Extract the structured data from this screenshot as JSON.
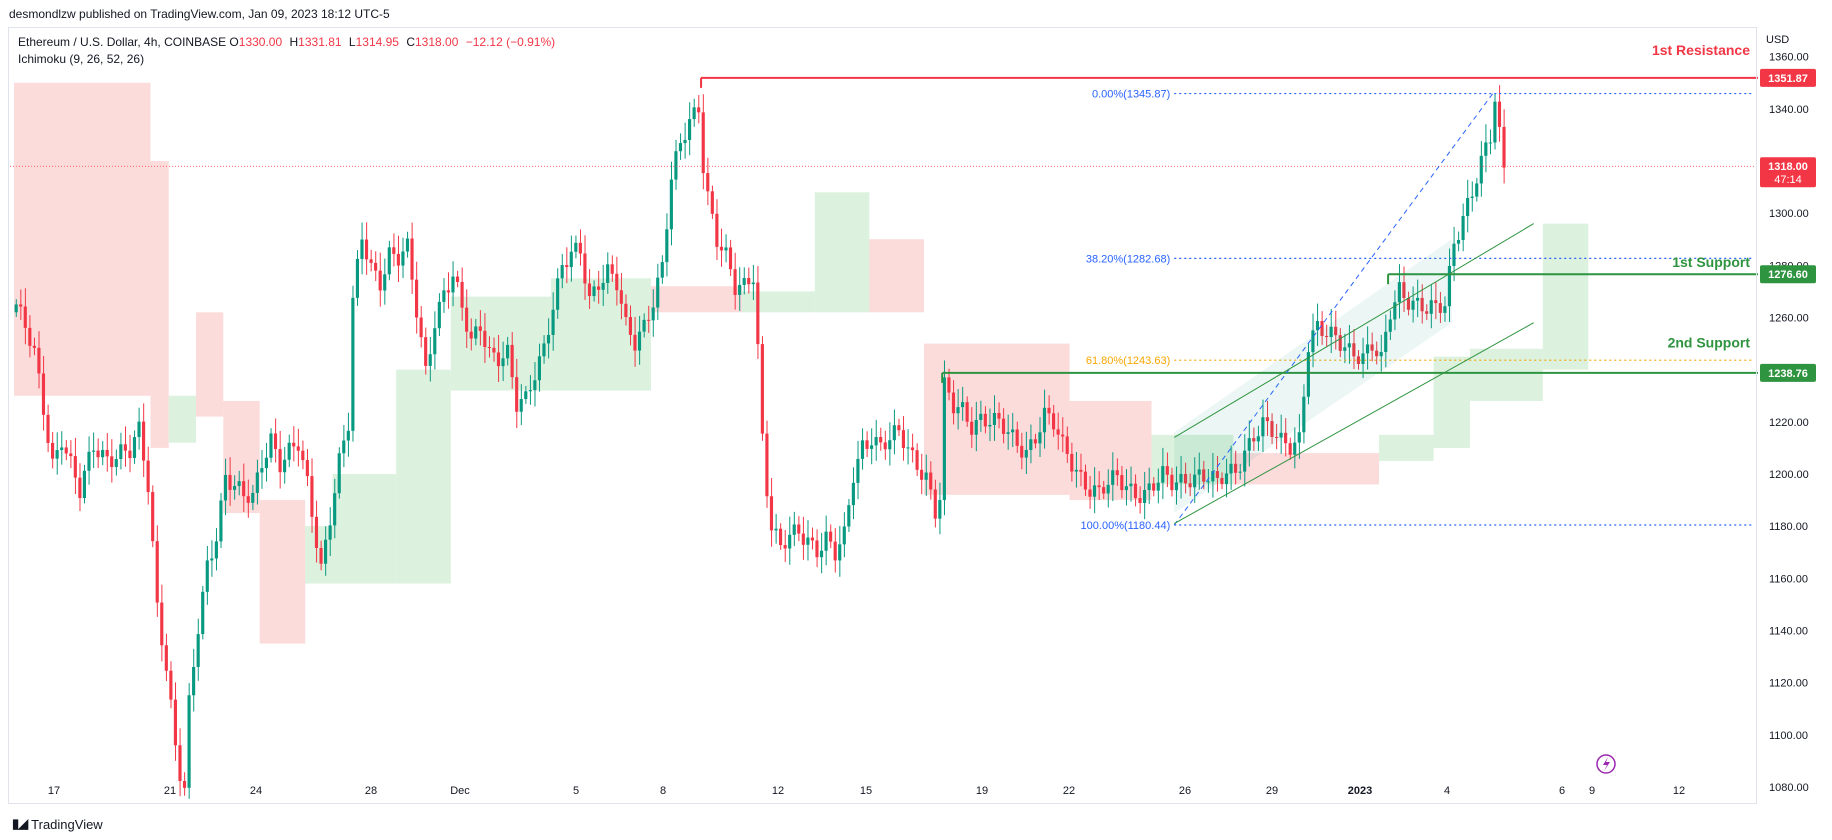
{
  "header": {
    "published": "desmondlzw published on TradingView.com, Jan 09, 2023 18:12 UTC-5"
  },
  "legend": {
    "symbol": "Ethereum / U.S. Dollar, 4h, COINBASE",
    "open_label": "O",
    "open": "1330.00",
    "high_label": "H",
    "high": "1331.81",
    "low_label": "L",
    "low": "1314.95",
    "close_label": "C",
    "close": "1318.00",
    "change": "−12.12 (−0.91%)",
    "indicator": "Ichimoku (9, 26, 52, 26)"
  },
  "axis": {
    "currency": "USD",
    "price_ticks": [
      "1360.00",
      "1340.00",
      "1320.00",
      "1300.00",
      "1280.00",
      "1260.00",
      "1240.00",
      "1220.00",
      "1200.00",
      "1180.00",
      "1160.00",
      "1140.00",
      "1120.00",
      "1100.00",
      "1080.00"
    ],
    "time_ticks": [
      "17",
      "21",
      "24",
      "28",
      "Dec",
      "5",
      "8",
      "12",
      "15",
      "19",
      "22",
      "26",
      "29",
      "2023",
      "4",
      "6",
      "9",
      "12"
    ]
  },
  "price_labels": {
    "resistance": "1351.87",
    "last": "1318.00",
    "countdown": "47:14",
    "support1": "1276.60",
    "support2": "1238.76"
  },
  "annotations": {
    "resistance_text": "1st Resistance",
    "support1_text": "1st Support",
    "support2_text": "2nd Support",
    "fib_0": "0.00%(1345.87)",
    "fib_38": "38.20%(1282.68)",
    "fib_61": "61.80%(1243.63)",
    "fib_100": "100.00%(1180.44)"
  },
  "footer": {
    "brand": "TradingView"
  },
  "colors": {
    "up": "#089981",
    "down": "#f23645",
    "resistance": "#f23645",
    "support": "#2e9440",
    "fib": "#2962ff",
    "fib61": "#f7a600",
    "cloud_green": "#d6eed8",
    "cloud_red": "#fbd5d5"
  },
  "chart_data": {
    "type": "candlestick",
    "title": "Ethereum / U.S. Dollar, 4h, COINBASE",
    "ylim": [
      1075,
      1371
    ],
    "y_ticks": [
      1360,
      1340,
      1320,
      1300,
      1280,
      1260,
      1240,
      1220,
      1200,
      1180,
      1160,
      1140,
      1120,
      1100,
      1080
    ],
    "x_ticks": [
      "17",
      "21",
      "24",
      "28",
      "Dec",
      "5",
      "8",
      "12",
      "15",
      "19",
      "22",
      "26",
      "29",
      "2023",
      "4",
      "6",
      "9",
      "12"
    ],
    "price_path": [
      [
        0,
        1265
      ],
      [
        4,
        1245
      ],
      [
        8,
        1205
      ],
      [
        10,
        1215
      ],
      [
        14,
        1192
      ],
      [
        17,
        1210
      ],
      [
        20,
        1207
      ],
      [
        23,
        1209
      ],
      [
        25,
        1208
      ],
      [
        27,
        1215
      ],
      [
        29,
        1195
      ],
      [
        31,
        1150
      ],
      [
        33,
        1128
      ],
      [
        35,
        1096
      ],
      [
        36,
        1085
      ],
      [
        37,
        1078
      ],
      [
        38,
        1110
      ],
      [
        40,
        1140
      ],
      [
        42,
        1165
      ],
      [
        44,
        1178
      ],
      [
        46,
        1200
      ],
      [
        48,
        1195
      ],
      [
        50,
        1190
      ],
      [
        52,
        1190
      ],
      [
        54,
        1205
      ],
      [
        56,
        1215
      ],
      [
        58,
        1205
      ],
      [
        60,
        1208
      ],
      [
        62,
        1210
      ],
      [
        64,
        1195
      ],
      [
        66,
        1175
      ],
      [
        67,
        1165
      ],
      [
        69,
        1185
      ],
      [
        71,
        1205
      ],
      [
        73,
        1218
      ],
      [
        74,
        1265
      ],
      [
        76,
        1290
      ],
      [
        78,
        1280
      ],
      [
        80,
        1275
      ],
      [
        82,
        1285
      ],
      [
        84,
        1282
      ],
      [
        86,
        1285
      ],
      [
        88,
        1262
      ],
      [
        90,
        1240
      ],
      [
        92,
        1260
      ],
      [
        94,
        1270
      ],
      [
        96,
        1275
      ],
      [
        98,
        1262
      ],
      [
        100,
        1250
      ],
      [
        102,
        1258
      ],
      [
        104,
        1248
      ],
      [
        106,
        1245
      ],
      [
        108,
        1245
      ],
      [
        110,
        1225
      ],
      [
        112,
        1228
      ],
      [
        114,
        1240
      ],
      [
        116,
        1250
      ],
      [
        118,
        1265
      ],
      [
        120,
        1278
      ],
      [
        122,
        1283
      ],
      [
        124,
        1285
      ],
      [
        126,
        1268
      ],
      [
        128,
        1275
      ],
      [
        130,
        1278
      ],
      [
        132,
        1272
      ],
      [
        134,
        1255
      ],
      [
        136,
        1250
      ],
      [
        138,
        1258
      ],
      [
        140,
        1268
      ],
      [
        142,
        1280
      ],
      [
        144,
        1312
      ],
      [
        146,
        1325
      ],
      [
        148,
        1335
      ],
      [
        150,
        1342
      ],
      [
        151,
        1320
      ],
      [
        152,
        1308
      ],
      [
        154,
        1290
      ],
      [
        156,
        1282
      ],
      [
        158,
        1270
      ],
      [
        160,
        1272
      ],
      [
        162,
        1278
      ],
      [
        163,
        1250
      ],
      [
        164,
        1215
      ],
      [
        165,
        1195
      ],
      [
        166,
        1180
      ],
      [
        168,
        1170
      ],
      [
        170,
        1175
      ],
      [
        172,
        1178
      ],
      [
        174,
        1176
      ],
      [
        176,
        1172
      ],
      [
        178,
        1175
      ],
      [
        180,
        1168
      ],
      [
        182,
        1175
      ],
      [
        184,
        1200
      ],
      [
        186,
        1212
      ],
      [
        188,
        1215
      ],
      [
        190,
        1210
      ],
      [
        192,
        1212
      ],
      [
        194,
        1215
      ],
      [
        196,
        1210
      ],
      [
        198,
        1205
      ],
      [
        200,
        1200
      ],
      [
        202,
        1185
      ],
      [
        203,
        1190
      ],
      [
        204,
        1232
      ],
      [
        206,
        1225
      ],
      [
        208,
        1225
      ],
      [
        210,
        1220
      ],
      [
        212,
        1222
      ],
      [
        214,
        1220
      ],
      [
        216,
        1218
      ],
      [
        218,
        1215
      ],
      [
        220,
        1212
      ],
      [
        222,
        1210
      ],
      [
        224,
        1215
      ],
      [
        226,
        1222
      ],
      [
        228,
        1218
      ],
      [
        230,
        1210
      ],
      [
        232,
        1205
      ],
      [
        234,
        1200
      ],
      [
        236,
        1195
      ],
      [
        238,
        1192
      ],
      [
        240,
        1195
      ],
      [
        242,
        1198
      ],
      [
        244,
        1196
      ],
      [
        246,
        1194
      ],
      [
        248,
        1193
      ],
      [
        250,
        1195
      ],
      [
        252,
        1198
      ],
      [
        254,
        1196
      ],
      [
        256,
        1198
      ],
      [
        258,
        1200
      ],
      [
        260,
        1200
      ],
      [
        262,
        1198
      ],
      [
        264,
        1195
      ],
      [
        266,
        1200
      ],
      [
        268,
        1202
      ],
      [
        270,
        1210
      ],
      [
        272,
        1215
      ],
      [
        274,
        1218
      ],
      [
        276,
        1215
      ],
      [
        278,
        1212
      ],
      [
        280,
        1212
      ],
      [
        282,
        1215
      ],
      [
        284,
        1250
      ],
      [
        286,
        1255
      ],
      [
        288,
        1252
      ],
      [
        290,
        1252
      ],
      [
        292,
        1250
      ],
      [
        294,
        1248
      ],
      [
        296,
        1245
      ],
      [
        298,
        1248
      ],
      [
        300,
        1242
      ],
      [
        302,
        1262
      ],
      [
        304,
        1272
      ],
      [
        306,
        1268
      ],
      [
        308,
        1265
      ],
      [
        310,
        1262
      ],
      [
        312,
        1262
      ],
      [
        314,
        1265
      ],
      [
        316,
        1290
      ],
      [
        318,
        1300
      ],
      [
        320,
        1308
      ],
      [
        322,
        1318
      ],
      [
        324,
        1328
      ],
      [
        325,
        1343
      ],
      [
        326,
        1330
      ],
      [
        327,
        1318
      ]
    ],
    "levels": {
      "first_resistance": 1351.87,
      "first_support": 1276.6,
      "second_support": 1238.76,
      "last_price": 1318.0
    },
    "fibonacci": [
      {
        "label": "0.00%",
        "value": 1345.87
      },
      {
        "label": "38.20%",
        "value": 1282.68
      },
      {
        "label": "61.80%",
        "value": 1243.63
      },
      {
        "label": "100.00%",
        "value": 1180.44
      }
    ],
    "ichimoku_cloud": [
      {
        "x0": 0,
        "x1": 30,
        "top": 1350,
        "bottom": 1230,
        "color": "red"
      },
      {
        "x0": 30,
        "x1": 34,
        "top": 1320,
        "bottom": 1210,
        "color": "red"
      },
      {
        "x0": 34,
        "x1": 40,
        "top": 1230,
        "bottom": 1212,
        "color": "green"
      },
      {
        "x0": 40,
        "x1": 46,
        "top": 1262,
        "bottom": 1222,
        "color": "red"
      },
      {
        "x0": 46,
        "x1": 54,
        "top": 1228,
        "bottom": 1185,
        "color": "red"
      },
      {
        "x0": 54,
        "x1": 64,
        "top": 1190,
        "bottom": 1135,
        "color": "red"
      },
      {
        "x0": 64,
        "x1": 70,
        "top": 1180,
        "bottom": 1158,
        "color": "green"
      },
      {
        "x0": 70,
        "x1": 84,
        "top": 1200,
        "bottom": 1158,
        "color": "green"
      },
      {
        "x0": 84,
        "x1": 96,
        "top": 1240,
        "bottom": 1158,
        "color": "green"
      },
      {
        "x0": 96,
        "x1": 118,
        "top": 1268,
        "bottom": 1232,
        "color": "green"
      },
      {
        "x0": 118,
        "x1": 140,
        "top": 1275,
        "bottom": 1232,
        "color": "green"
      },
      {
        "x0": 140,
        "x1": 160,
        "top": 1272,
        "bottom": 1262,
        "color": "red"
      },
      {
        "x0": 160,
        "x1": 176,
        "top": 1270,
        "bottom": 1262,
        "color": "green"
      },
      {
        "x0": 176,
        "x1": 188,
        "top": 1308,
        "bottom": 1262,
        "color": "green"
      },
      {
        "x0": 188,
        "x1": 200,
        "top": 1290,
        "bottom": 1262,
        "color": "red"
      },
      {
        "x0": 200,
        "x1": 232,
        "top": 1250,
        "bottom": 1192,
        "color": "red"
      },
      {
        "x0": 232,
        "x1": 250,
        "top": 1228,
        "bottom": 1190,
        "color": "red"
      },
      {
        "x0": 250,
        "x1": 268,
        "top": 1215,
        "bottom": 1196,
        "color": "green"
      },
      {
        "x0": 268,
        "x1": 300,
        "top": 1208,
        "bottom": 1196,
        "color": "red"
      },
      {
        "x0": 300,
        "x1": 312,
        "top": 1215,
        "bottom": 1205,
        "color": "green"
      },
      {
        "x0": 312,
        "x1": 320,
        "top": 1245,
        "bottom": 1210,
        "color": "green"
      },
      {
        "x0": 320,
        "x1": 336,
        "top": 1248,
        "bottom": 1228,
        "color": "green"
      },
      {
        "x0": 336,
        "x1": 346,
        "top": 1296,
        "bottom": 1240,
        "color": "green"
      }
    ]
  }
}
